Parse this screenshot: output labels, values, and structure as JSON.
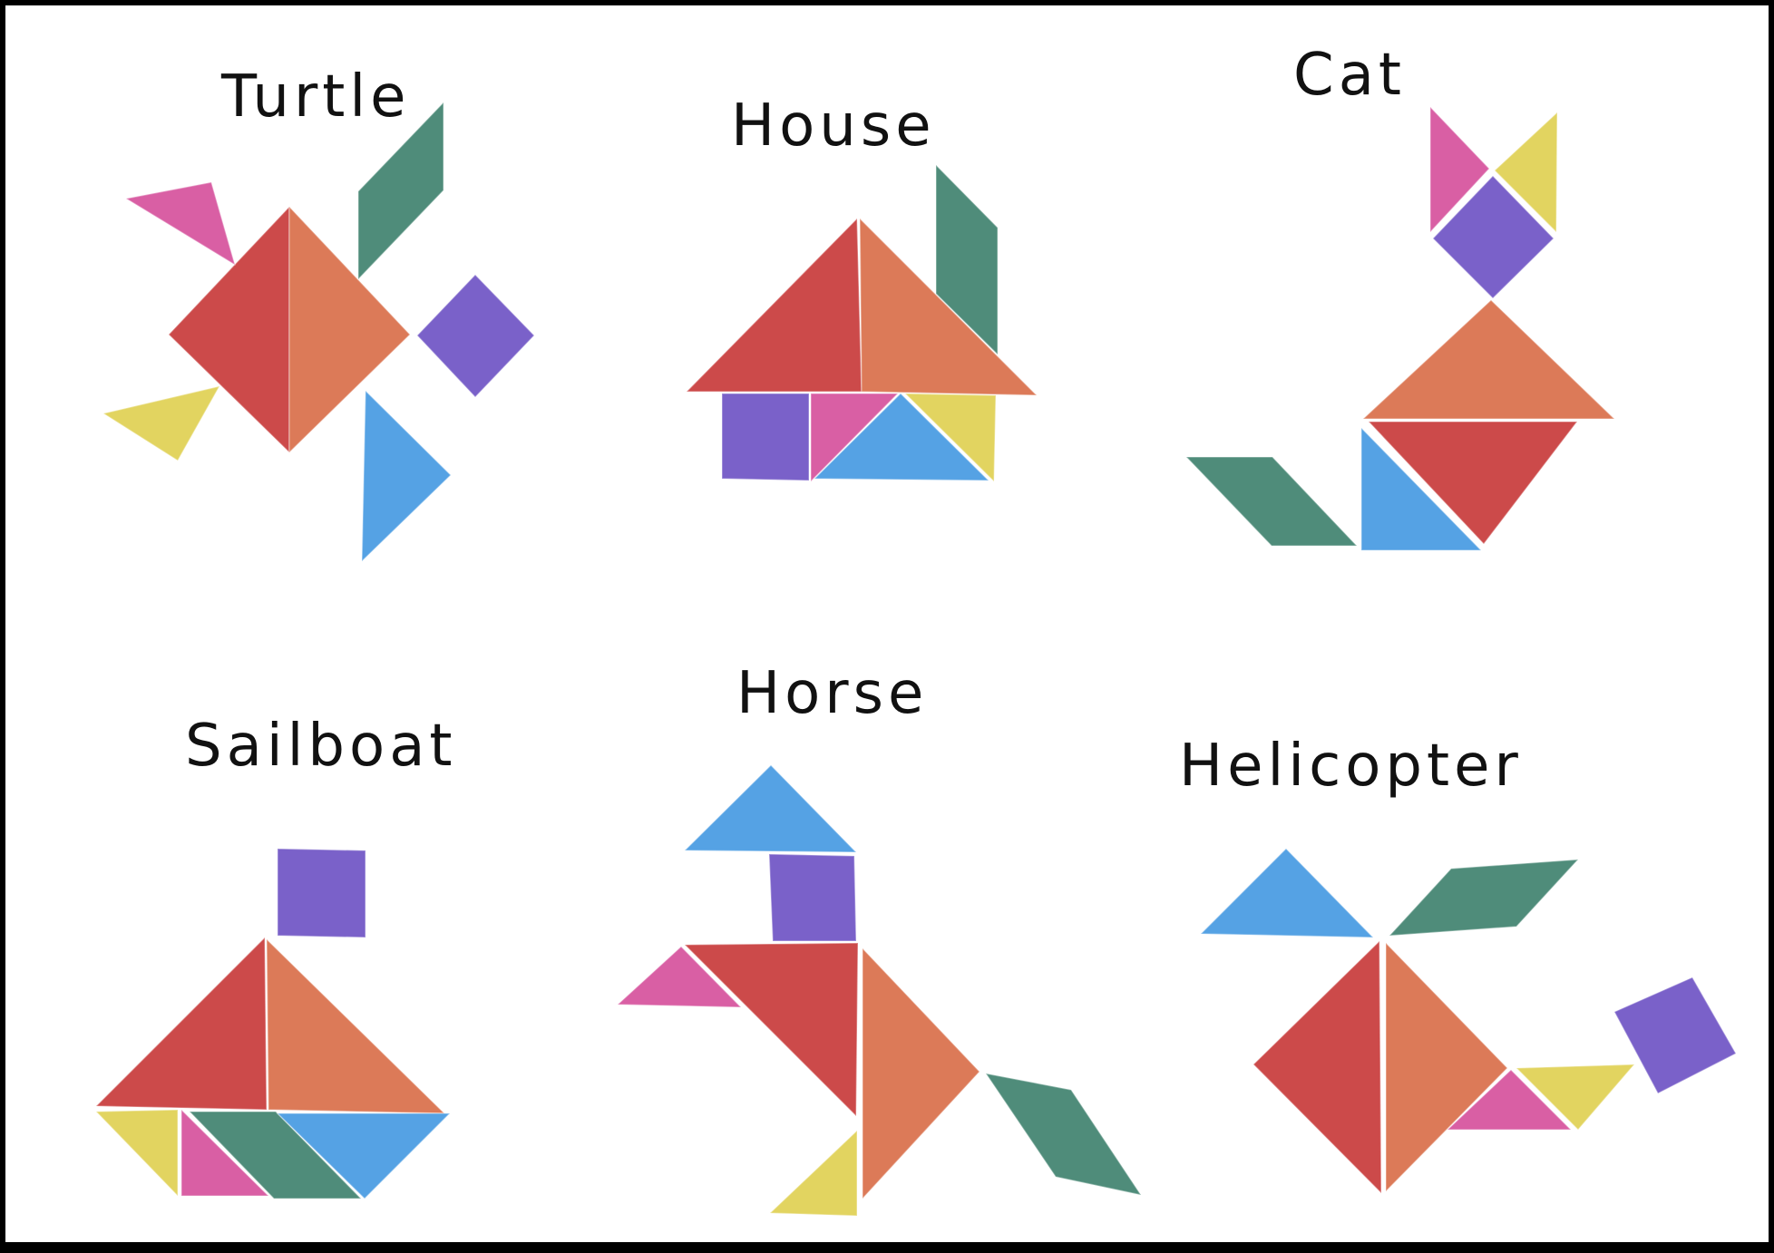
{
  "colors": {
    "red": "#cc4a4a",
    "orange": "#dc7a58",
    "green": "#4f8c7a",
    "purple": "#7a61c9",
    "blue": "#55a2e4",
    "pink": "#d95fa4",
    "yellow": "#e2d460"
  },
  "figures": [
    {
      "name": "turtle",
      "title": "Turtle"
    },
    {
      "name": "house",
      "title": "House"
    },
    {
      "name": "cat",
      "title": "Cat"
    },
    {
      "name": "sailboat",
      "title": "Sailboat"
    },
    {
      "name": "horse",
      "title": "Horse"
    },
    {
      "name": "helicopter",
      "title": "Helicopter"
    }
  ]
}
